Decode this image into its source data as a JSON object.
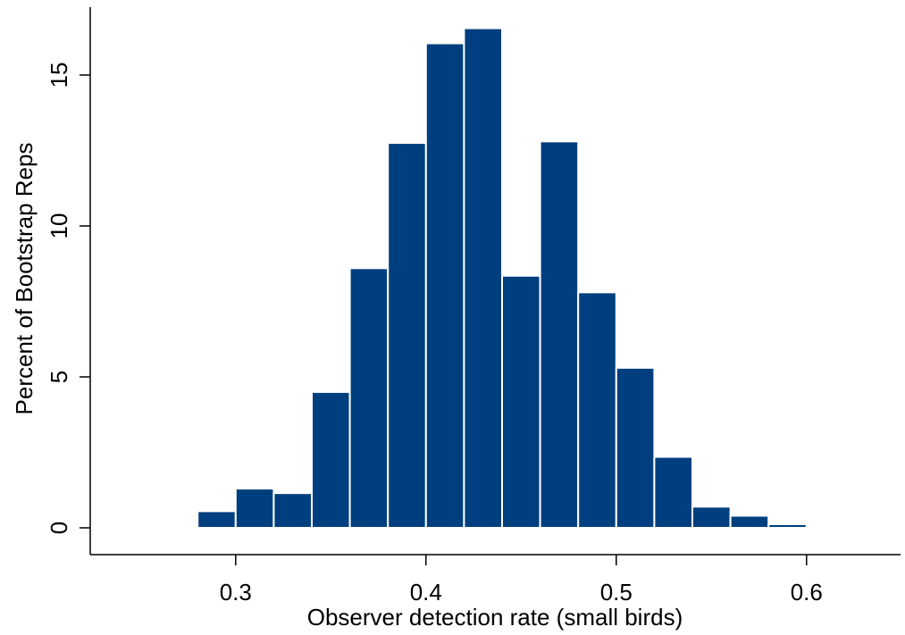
{
  "chart_data": {
    "type": "bar",
    "subtype": "histogram",
    "title": "",
    "xlabel": "Observer detection rate (small birds)",
    "ylabel": "Percent of Bootstrap Reps",
    "bin_width": 0.02,
    "bins": [
      {
        "start": 0.24,
        "end": 0.26,
        "value": 0.02
      },
      {
        "start": 0.26,
        "end": 0.28,
        "value": 0.03
      },
      {
        "start": 0.28,
        "end": 0.3,
        "value": 0.55
      },
      {
        "start": 0.3,
        "end": 0.32,
        "value": 1.3
      },
      {
        "start": 0.32,
        "end": 0.34,
        "value": 1.15
      },
      {
        "start": 0.34,
        "end": 0.36,
        "value": 4.5
      },
      {
        "start": 0.36,
        "end": 0.38,
        "value": 8.6
      },
      {
        "start": 0.38,
        "end": 0.4,
        "value": 12.75
      },
      {
        "start": 0.4,
        "end": 0.42,
        "value": 16.05
      },
      {
        "start": 0.42,
        "end": 0.44,
        "value": 16.55
      },
      {
        "start": 0.44,
        "end": 0.46,
        "value": 8.35
      },
      {
        "start": 0.46,
        "end": 0.48,
        "value": 12.8
      },
      {
        "start": 0.48,
        "end": 0.5,
        "value": 7.8
      },
      {
        "start": 0.5,
        "end": 0.52,
        "value": 5.3
      },
      {
        "start": 0.52,
        "end": 0.54,
        "value": 2.35
      },
      {
        "start": 0.54,
        "end": 0.56,
        "value": 0.7
      },
      {
        "start": 0.56,
        "end": 0.58,
        "value": 0.4
      },
      {
        "start": 0.58,
        "end": 0.6,
        "value": 0.12
      },
      {
        "start": 0.6,
        "end": 0.62,
        "value": 0.02
      },
      {
        "start": 0.62,
        "end": 0.64,
        "value": 0.01
      }
    ],
    "x_ticks": [
      0.3,
      0.4,
      0.5,
      0.6
    ],
    "x_tick_labels": [
      "0.3",
      "0.4",
      "0.5",
      "0.6"
    ],
    "y_ticks": [
      0,
      5,
      10,
      15
    ],
    "y_tick_labels": [
      "0",
      "5",
      "10",
      "15"
    ],
    "xlim": [
      0.24,
      0.64
    ],
    "ylim": [
      0,
      17.5
    ],
    "grid": false,
    "legend": "none",
    "bar_color": "#003F7F",
    "bar_edge_color": "#FFFFFF"
  }
}
